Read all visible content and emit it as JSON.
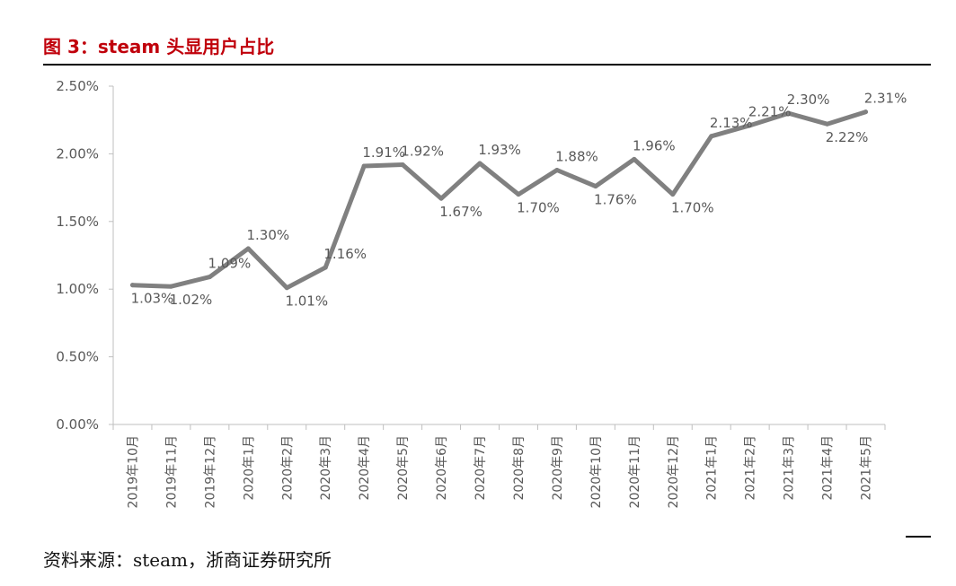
{
  "header": {
    "title": "图 3：steam 头显用户占比"
  },
  "footer": {
    "source": "资料来源：steam，浙商证券研究所"
  },
  "colors": {
    "line": "#808080",
    "title": "#c0000b",
    "axis": "#bfbfbf",
    "label": "#595959"
  },
  "chart_data": {
    "type": "line",
    "title": "",
    "xlabel": "",
    "ylabel": "",
    "ylim": [
      0,
      2.5
    ],
    "yticks": [
      "0.00%",
      "0.50%",
      "1.00%",
      "1.50%",
      "2.00%",
      "2.50%"
    ],
    "grid": false,
    "categories": [
      "2019年10月",
      "2019年11月",
      "2019年12月",
      "2020年1月",
      "2020年2月",
      "2020年3月",
      "2020年4月",
      "2020年5月",
      "2020年6月",
      "2020年7月",
      "2020年8月",
      "2020年9月",
      "2020年10月",
      "2020年11月",
      "2020年12月",
      "2021年1月",
      "2021年2月",
      "2021年3月",
      "2021年4月",
      "2021年5月"
    ],
    "series": [
      {
        "values": [
          1.03,
          1.02,
          1.09,
          1.3,
          1.01,
          1.16,
          1.91,
          1.92,
          1.67,
          1.93,
          1.7,
          1.88,
          1.76,
          1.96,
          1.7,
          2.13,
          2.21,
          2.3,
          2.22,
          2.31
        ],
        "labels": [
          "1.03%",
          "1.02%",
          "1.09%",
          "1.30%",
          "1.01%",
          "1.16%",
          "1.91%",
          "1.92%",
          "1.67%",
          "1.93%",
          "1.70%",
          "1.88%",
          "1.76%",
          "1.96%",
          "1.70%",
          "2.13%",
          "2.21%",
          "2.30%",
          "2.22%",
          "2.31%"
        ]
      }
    ]
  }
}
